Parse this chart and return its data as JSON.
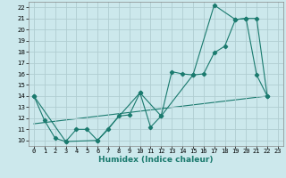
{
  "xlabel": "Humidex (Indice chaleur)",
  "bg_color": "#cce8ec",
  "grid_color": "#b0cdd1",
  "line_color": "#1a7a6e",
  "xlim": [
    -0.5,
    23.5
  ],
  "ylim": [
    9.5,
    22.5
  ],
  "xticks": [
    0,
    1,
    2,
    3,
    4,
    5,
    6,
    7,
    8,
    9,
    10,
    11,
    12,
    13,
    14,
    15,
    16,
    17,
    18,
    19,
    20,
    21,
    22,
    23
  ],
  "yticks": [
    10,
    11,
    12,
    13,
    14,
    15,
    16,
    17,
    18,
    19,
    20,
    21,
    22
  ],
  "line1_x": [
    0,
    1,
    2,
    3,
    4,
    5,
    6,
    7,
    8,
    9,
    10,
    11,
    12,
    13,
    14,
    15,
    16,
    17,
    18,
    19,
    20,
    21,
    22
  ],
  "line1_y": [
    14.0,
    11.8,
    10.2,
    9.9,
    11.0,
    11.0,
    10.0,
    11.0,
    12.2,
    12.3,
    14.3,
    11.2,
    12.2,
    16.2,
    16.0,
    15.9,
    16.0,
    17.9,
    18.5,
    20.9,
    21.0,
    15.9,
    14.0
  ],
  "line2_x": [
    0,
    3,
    6,
    10,
    12,
    15,
    17,
    19,
    20,
    21,
    22
  ],
  "line2_y": [
    14.0,
    9.9,
    10.0,
    14.3,
    12.2,
    15.9,
    22.2,
    20.9,
    21.0,
    21.0,
    14.0
  ],
  "line3_x": [
    0,
    22
  ],
  "line3_y": [
    11.5,
    14.0
  ]
}
